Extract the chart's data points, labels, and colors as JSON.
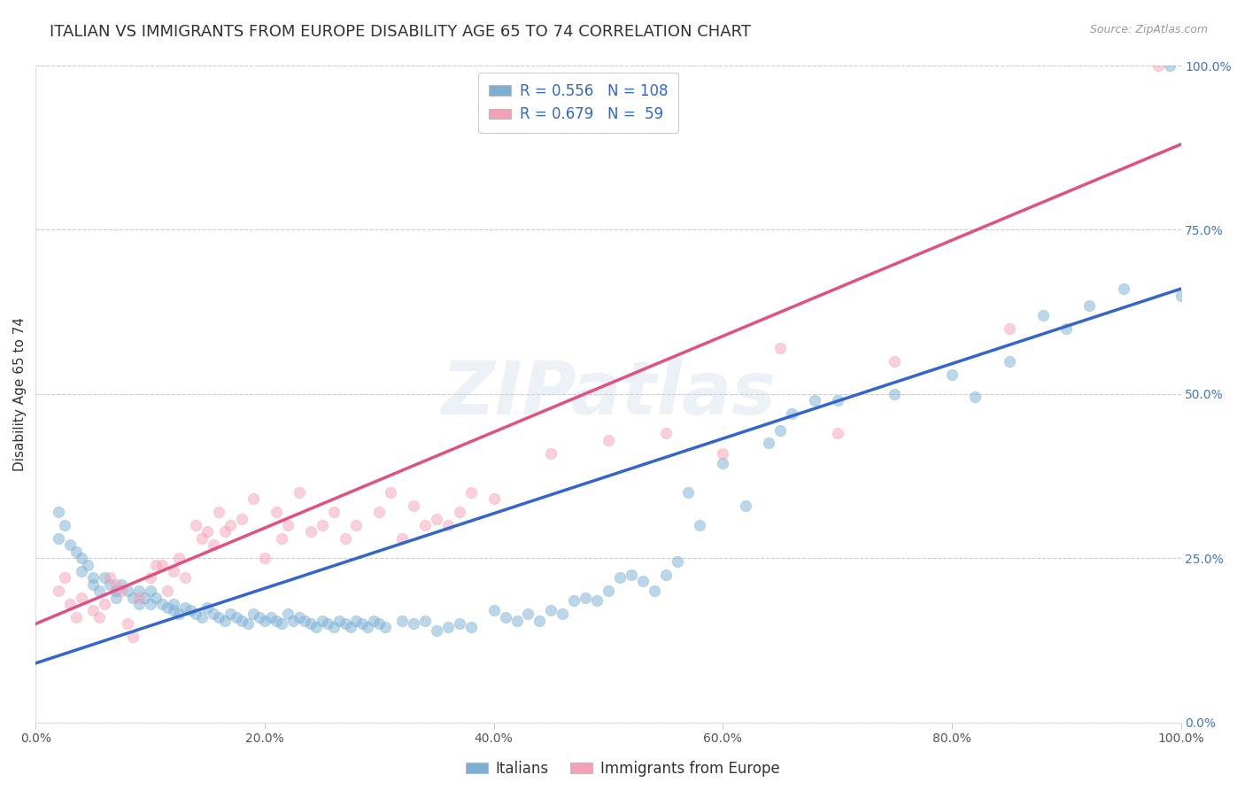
{
  "title": "ITALIAN VS IMMIGRANTS FROM EUROPE DISABILITY AGE 65 TO 74 CORRELATION CHART",
  "source": "Source: ZipAtlas.com",
  "ylabel": "Disability Age 65 to 74",
  "watermark": "ZIPatlas",
  "blue_R": 0.556,
  "blue_N": 108,
  "pink_R": 0.679,
  "pink_N": 59,
  "blue_color": "#7bafd4",
  "pink_color": "#f4a0b5",
  "blue_line_color": "#3366cc",
  "pink_line_color": "#e05080",
  "xlim": [
    0,
    1
  ],
  "ylim": [
    0,
    1
  ],
  "xtick_labels": [
    "0.0%",
    "20.0%",
    "40.0%",
    "60.0%",
    "80.0%",
    "100.0%"
  ],
  "ytick_labels": [
    "0.0%",
    "25.0%",
    "50.0%",
    "75.0%",
    "100.0%"
  ],
  "ytick_values": [
    0.0,
    0.25,
    0.5,
    0.75,
    1.0
  ],
  "xtick_values": [
    0.0,
    0.2,
    0.4,
    0.6,
    0.8,
    1.0
  ],
  "legend_label_blue": "Italians",
  "legend_label_pink": "Immigrants from Europe",
  "blue_scatter_x": [
    0.02,
    0.02,
    0.025,
    0.03,
    0.035,
    0.04,
    0.04,
    0.045,
    0.05,
    0.05,
    0.055,
    0.06,
    0.065,
    0.07,
    0.07,
    0.075,
    0.08,
    0.085,
    0.09,
    0.09,
    0.095,
    0.1,
    0.1,
    0.105,
    0.11,
    0.115,
    0.12,
    0.12,
    0.125,
    0.13,
    0.135,
    0.14,
    0.145,
    0.15,
    0.155,
    0.16,
    0.165,
    0.17,
    0.175,
    0.18,
    0.185,
    0.19,
    0.195,
    0.2,
    0.205,
    0.21,
    0.215,
    0.22,
    0.225,
    0.23,
    0.235,
    0.24,
    0.245,
    0.25,
    0.255,
    0.26,
    0.265,
    0.27,
    0.275,
    0.28,
    0.285,
    0.29,
    0.295,
    0.3,
    0.305,
    0.32,
    0.33,
    0.34,
    0.35,
    0.36,
    0.37,
    0.38,
    0.4,
    0.41,
    0.42,
    0.43,
    0.44,
    0.45,
    0.46,
    0.47,
    0.48,
    0.49,
    0.5,
    0.51,
    0.52,
    0.53,
    0.54,
    0.55,
    0.56,
    0.57,
    0.58,
    0.6,
    0.62,
    0.64,
    0.65,
    0.66,
    0.68,
    0.7,
    0.75,
    0.8,
    0.82,
    0.85,
    0.88,
    0.9,
    0.92,
    0.95,
    0.99,
    1.0
  ],
  "blue_scatter_y": [
    0.32,
    0.28,
    0.3,
    0.27,
    0.26,
    0.25,
    0.23,
    0.24,
    0.22,
    0.21,
    0.2,
    0.22,
    0.21,
    0.2,
    0.19,
    0.21,
    0.2,
    0.19,
    0.18,
    0.2,
    0.19,
    0.18,
    0.2,
    0.19,
    0.18,
    0.175,
    0.18,
    0.17,
    0.165,
    0.175,
    0.17,
    0.165,
    0.16,
    0.175,
    0.165,
    0.16,
    0.155,
    0.165,
    0.16,
    0.155,
    0.15,
    0.165,
    0.16,
    0.155,
    0.16,
    0.155,
    0.15,
    0.165,
    0.155,
    0.16,
    0.155,
    0.15,
    0.145,
    0.155,
    0.15,
    0.145,
    0.155,
    0.15,
    0.145,
    0.155,
    0.15,
    0.145,
    0.155,
    0.15,
    0.145,
    0.155,
    0.15,
    0.155,
    0.14,
    0.145,
    0.15,
    0.145,
    0.17,
    0.16,
    0.155,
    0.165,
    0.155,
    0.17,
    0.165,
    0.185,
    0.19,
    0.185,
    0.2,
    0.22,
    0.225,
    0.215,
    0.2,
    0.225,
    0.245,
    0.35,
    0.3,
    0.395,
    0.33,
    0.425,
    0.445,
    0.47,
    0.49,
    0.49,
    0.5,
    0.53,
    0.495,
    0.55,
    0.62,
    0.6,
    0.635,
    0.66,
    1.0,
    0.65
  ],
  "pink_scatter_x": [
    0.02,
    0.025,
    0.03,
    0.035,
    0.04,
    0.05,
    0.055,
    0.06,
    0.065,
    0.07,
    0.075,
    0.08,
    0.085,
    0.09,
    0.1,
    0.105,
    0.11,
    0.115,
    0.12,
    0.125,
    0.13,
    0.14,
    0.145,
    0.15,
    0.155,
    0.16,
    0.165,
    0.17,
    0.18,
    0.19,
    0.2,
    0.21,
    0.215,
    0.22,
    0.23,
    0.24,
    0.25,
    0.26,
    0.27,
    0.28,
    0.3,
    0.31,
    0.32,
    0.33,
    0.34,
    0.35,
    0.36,
    0.37,
    0.38,
    0.4,
    0.45,
    0.5,
    0.55,
    0.6,
    0.65,
    0.7,
    0.75,
    0.85,
    0.98
  ],
  "pink_scatter_y": [
    0.2,
    0.22,
    0.18,
    0.16,
    0.19,
    0.17,
    0.16,
    0.18,
    0.22,
    0.21,
    0.2,
    0.15,
    0.13,
    0.19,
    0.22,
    0.24,
    0.24,
    0.2,
    0.23,
    0.25,
    0.22,
    0.3,
    0.28,
    0.29,
    0.27,
    0.32,
    0.29,
    0.3,
    0.31,
    0.34,
    0.25,
    0.32,
    0.28,
    0.3,
    0.35,
    0.29,
    0.3,
    0.32,
    0.28,
    0.3,
    0.32,
    0.35,
    0.28,
    0.33,
    0.3,
    0.31,
    0.3,
    0.32,
    0.35,
    0.34,
    0.41,
    0.43,
    0.44,
    0.41,
    0.57,
    0.44,
    0.55,
    0.6,
    1.0
  ],
  "blue_line_y_start": 0.09,
  "blue_line_y_end": 0.66,
  "pink_line_y_start": 0.15,
  "pink_line_y_end": 0.88,
  "grid_color": "#cccccc",
  "background_color": "#ffffff",
  "title_fontsize": 13,
  "axis_label_fontsize": 11,
  "tick_fontsize": 10,
  "legend_fontsize": 12,
  "scatter_size": 80,
  "scatter_alpha": 0.5,
  "line_width": 2.5,
  "ytick_right_color": "#4472c4",
  "watermark_color": "#c8d8e8",
  "watermark_fontsize": 60,
  "watermark_alpha": 0.35
}
